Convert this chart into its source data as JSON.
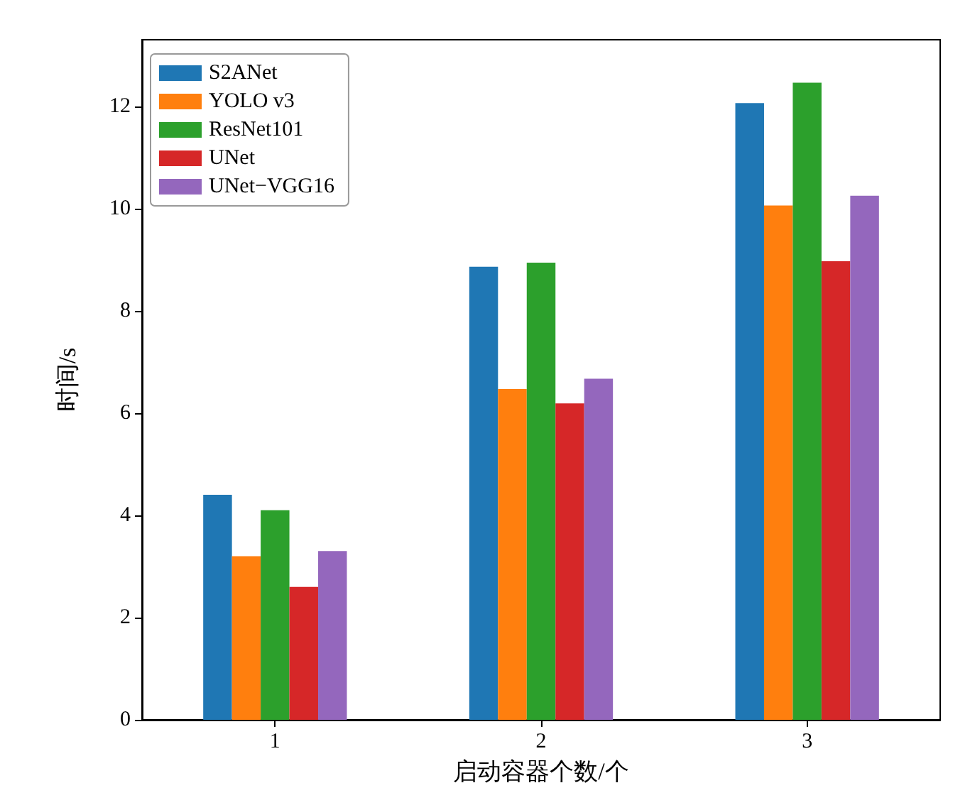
{
  "chart_data": {
    "type": "bar",
    "xlabel": "启动容器个数/个",
    "ylabel": "时间/s",
    "categories": [
      "1",
      "2",
      "3"
    ],
    "series": [
      {
        "name": "S2ANet",
        "color": "#1f77b4",
        "values": [
          4.4,
          8.86,
          12.06
        ]
      },
      {
        "name": "YOLO v3",
        "color": "#ff7f0e",
        "values": [
          3.2,
          6.47,
          10.06
        ]
      },
      {
        "name": "ResNet101",
        "color": "#2ca02c",
        "values": [
          4.1,
          8.94,
          12.46
        ]
      },
      {
        "name": "UNet",
        "color": "#d62728",
        "values": [
          2.6,
          6.19,
          8.97
        ]
      },
      {
        "name": "UNet−VGG16",
        "color": "#9467bd",
        "values": [
          3.3,
          6.67,
          10.25
        ]
      }
    ],
    "ylim": [
      0,
      13.3
    ],
    "yticks": [
      0,
      2,
      4,
      6,
      8,
      10,
      12
    ],
    "grid": false,
    "legend": "top left"
  }
}
